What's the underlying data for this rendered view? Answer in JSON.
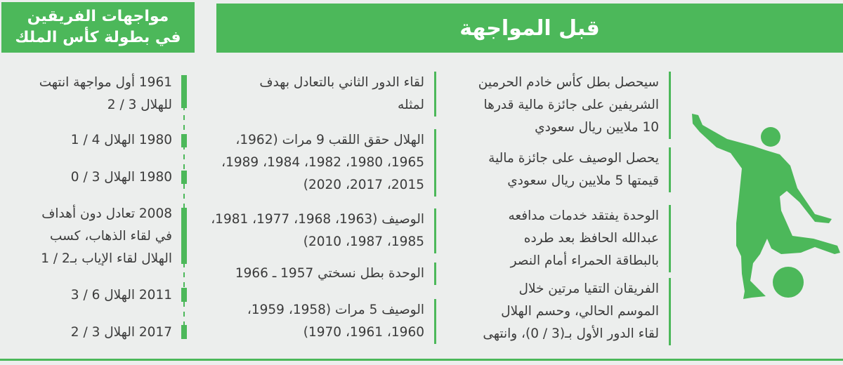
{
  "header": {
    "title": "قبل المواجهة"
  },
  "side_header": {
    "lines": [
      "مواجهات الفريقين",
      "في بطولة كأس الملك"
    ]
  },
  "before_match": [
    {
      "lines": [
        "سيحصل بطل كأس خادم الحرمين",
        "الشريفين على جائزة مالية قدرها",
        "10 ملايين ريال سعودي"
      ]
    },
    {
      "lines": [
        "يحصل الوصيف على جائزة مالية",
        "قيمتها 5 ملايين ريال سعودي"
      ]
    },
    {
      "lines": [
        "الوحدة يفتقد خدمات مدافعه",
        "عبدالله الحافظ بعد طرده",
        "بالبطاقة الحمراء أمام النصر"
      ]
    },
    {
      "lines": [
        "الفريقان التقيا مرتين خلال",
        "الموسم الحالي، وحسم الهلال",
        "لقاء الدور الأول بـ(3 / 0)، وانتهى"
      ]
    }
  ],
  "middle": [
    {
      "lines": [
        "لقاء الدور الثاني بالتعادل بهدف",
        "لمثله"
      ]
    },
    {
      "lines": [
        "الهلال حقق اللقب 9 مرات (1962،",
        "1965، 1980، 1982، 1984، 1989،",
        "2015، 2017، 2020)"
      ]
    },
    {
      "lines": [
        "الوصيف (1963، 1968، 1977، 1981،",
        "1985، 1987، 2010)"
      ]
    },
    {
      "lines": [
        "الوحدة بطل نسختي 1957 ـ 1966"
      ]
    },
    {
      "lines": [
        "الوصيف 5 مرات (1958، 1959،",
        "1960، 1961، 1970)"
      ]
    }
  ],
  "history": [
    {
      "lines": [
        "1961 أول مواجهة انتهت",
        "للهلال 3 / 2"
      ]
    },
    {
      "lines": [
        "1980 الهلال 4 / 1"
      ]
    },
    {
      "lines": [
        "1980 الهلال 3 / 0"
      ]
    },
    {
      "lines": [
        "2008 تعادل دون أهداف",
        "في لقاء الذهاب، كسب",
        "الهلال لقاء الإياب بـ2 / 1"
      ]
    },
    {
      "lines": [
        "2011 الهلال 6 / 3"
      ]
    },
    {
      "lines": [
        "2017 الهلال 3 / 2"
      ]
    }
  ],
  "colors": {
    "accent": "#4cb85a",
    "background": "#eceeed",
    "text": "#3b3b3b"
  },
  "icons": {
    "illustration": "football-player-kicking-icon"
  }
}
